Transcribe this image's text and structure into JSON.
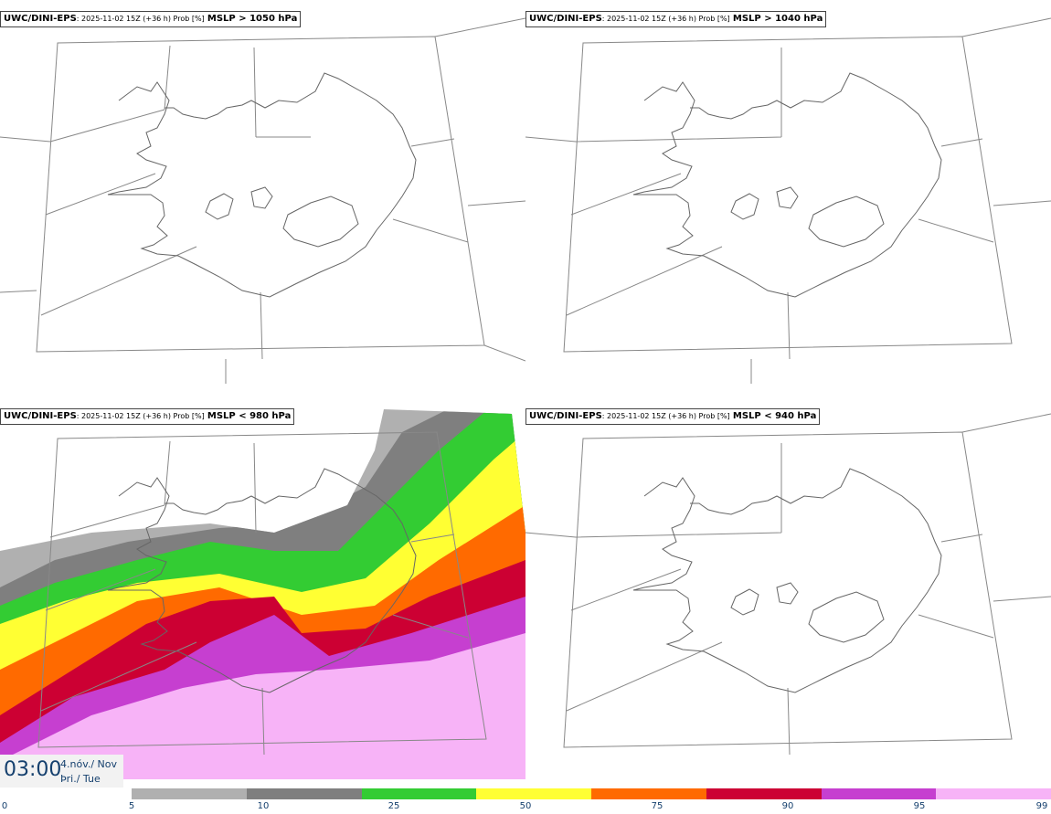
{
  "panels": [
    {
      "model": "UWC/DINI-EPS",
      "meta": ": 2025-11-02 15Z (+36 h) Prob [%]",
      "threshold": "MSLP > 1050 hPa"
    },
    {
      "model": "UWC/DINI-EPS",
      "meta": ": 2025-11-02 15Z (+36 h) Prob [%]",
      "threshold": "MSLP > 1040 hPa"
    },
    {
      "model": "UWC/DINI-EPS",
      "meta": ": 2025-11-02 15Z (+36 h) Prob [%]",
      "threshold": "MSLP < 980 hPa"
    },
    {
      "model": "UWC/DINI-EPS",
      "meta": ": 2025-11-02 15Z (+36 h) Prob [%]",
      "threshold": "MSLP < 940 hPa"
    }
  ],
  "valid_time": {
    "clock": "03:00",
    "date_line1": "4.nóv./ Nov",
    "date_line2": "Þri./ Tue"
  },
  "colorbar": {
    "ticks": [
      "0",
      "5",
      "10",
      "25",
      "50",
      "75",
      "90",
      "95",
      "99"
    ],
    "colors": [
      "#b0b0b0",
      "#7f7f7f",
      "#33cc33",
      "#ffff33",
      "#ff6a00",
      "#cc0033",
      "#c63fd0",
      "#f7b3f7"
    ]
  },
  "map_features": {
    "region": "Iceland",
    "colors": {
      "coast": "#666666",
      "grid": "#888888"
    },
    "filled_probability_panel": 3
  }
}
